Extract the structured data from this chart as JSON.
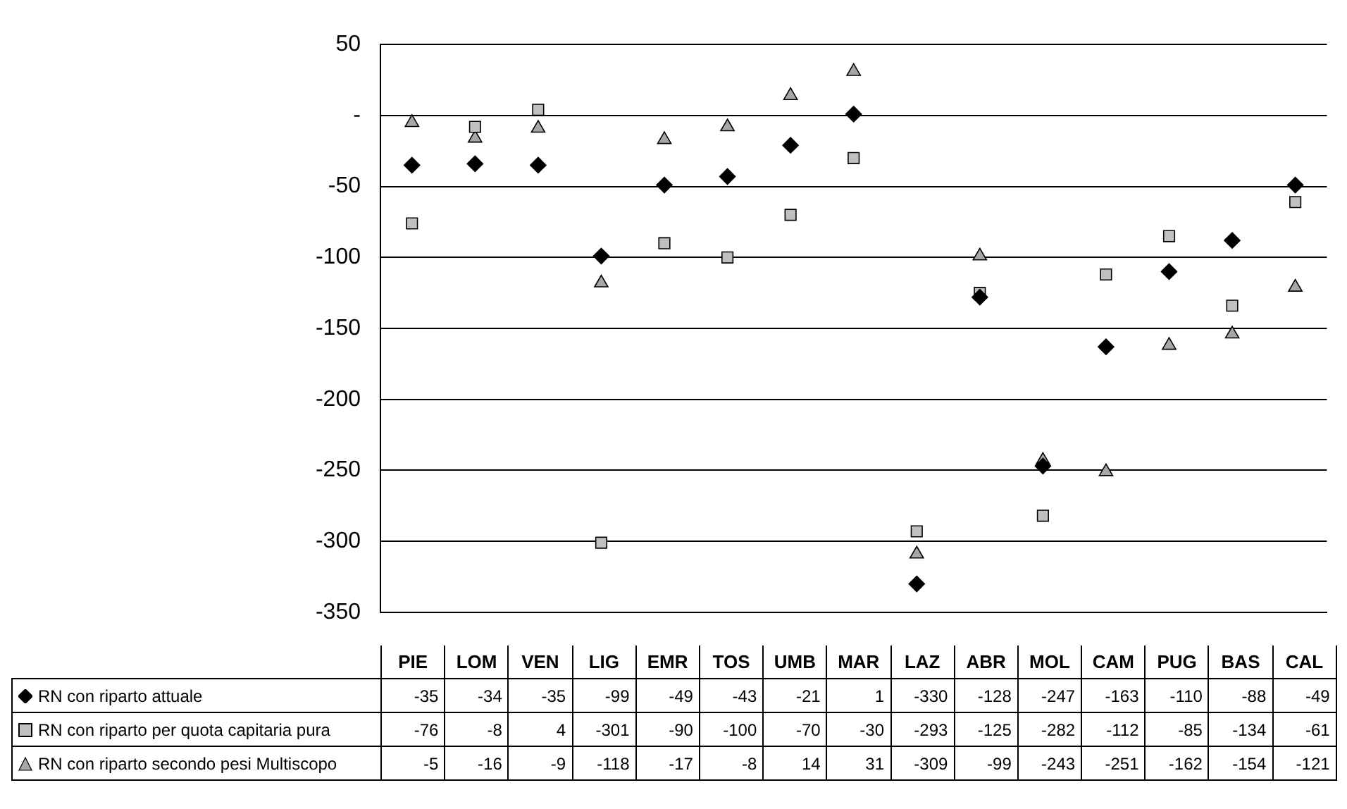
{
  "chart_data": {
    "type": "scatter",
    "categories": [
      "PIE",
      "LOM",
      "VEN",
      "LIG",
      "EMR",
      "TOS",
      "UMB",
      "MAR",
      "LAZ",
      "ABR",
      "MOL",
      "CAM",
      "PUG",
      "BAS",
      "CAL"
    ],
    "series": [
      {
        "name": "RN con riparto attuale",
        "color": "#000000",
        "marker": "diamond",
        "values": [
          -35,
          -34,
          -35,
          -99,
          -49,
          -43,
          -21,
          1,
          -330,
          -128,
          -247,
          -163,
          -110,
          -88,
          -49
        ]
      },
      {
        "name": "RN con riparto per quota capitaria pura",
        "color": "#c0c0c0",
        "marker": "square",
        "values": [
          -76,
          -8,
          4,
          -301,
          -90,
          -100,
          -70,
          -30,
          -293,
          -125,
          -282,
          -112,
          -85,
          -134,
          -61
        ]
      },
      {
        "name": "RN con riparto secondo pesi Multiscopo",
        "color": "#a6a6a6",
        "marker": "triangle",
        "values": [
          -5,
          -16,
          -9,
          -118,
          -17,
          -8,
          14,
          31,
          -309,
          -99,
          -243,
          -251,
          -162,
          -154,
          -121
        ]
      }
    ],
    "ylim": [
      -350,
      50
    ],
    "yticks": [
      -350,
      -300,
      -250,
      -200,
      -150,
      -100,
      -50,
      {
        "value": 0,
        "label": "-"
      },
      50
    ],
    "grid": "y",
    "legend": "bottom",
    "data_labels": true
  }
}
